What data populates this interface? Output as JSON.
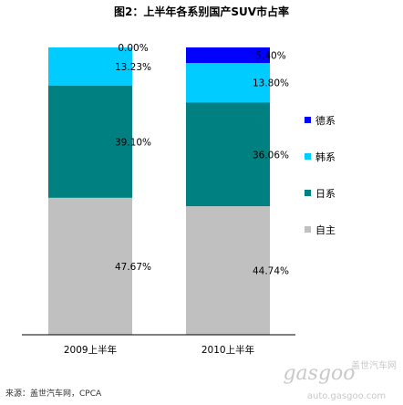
{
  "chart_data": {
    "type": "bar",
    "stacked": true,
    "title": "图2：上半年各系别国产SUV市占率",
    "categories": [
      "2009上半年",
      "2010上半年"
    ],
    "series": [
      {
        "name": "自主",
        "values": [
          47.67,
          44.74
        ],
        "labels": [
          "47.67%",
          "44.74%"
        ],
        "color": "#c0c0c0"
      },
      {
        "name": "日系",
        "values": [
          39.1,
          36.06
        ],
        "labels": [
          "39.10%",
          "36.06%"
        ],
        "color": "#008080"
      },
      {
        "name": "韩系",
        "values": [
          13.23,
          13.8
        ],
        "labels": [
          "13.23%",
          "13.80%"
        ],
        "color": "#00ccff"
      },
      {
        "name": "德系",
        "values": [
          0.0,
          5.4
        ],
        "labels": [
          "0.00%",
          "5.40%"
        ],
        "color": "#0000ff"
      }
    ],
    "legend_order": [
      "德系",
      "韩系",
      "日系",
      "自主"
    ],
    "legend_position": "right",
    "ylim": [
      0,
      100
    ],
    "grid": false,
    "source": "来源：盖世汽车网，CPCA"
  },
  "watermark": {
    "logo": "gasgoo",
    "subtitle": "盖世汽车网",
    "url": "auto.gasgoo.com"
  }
}
